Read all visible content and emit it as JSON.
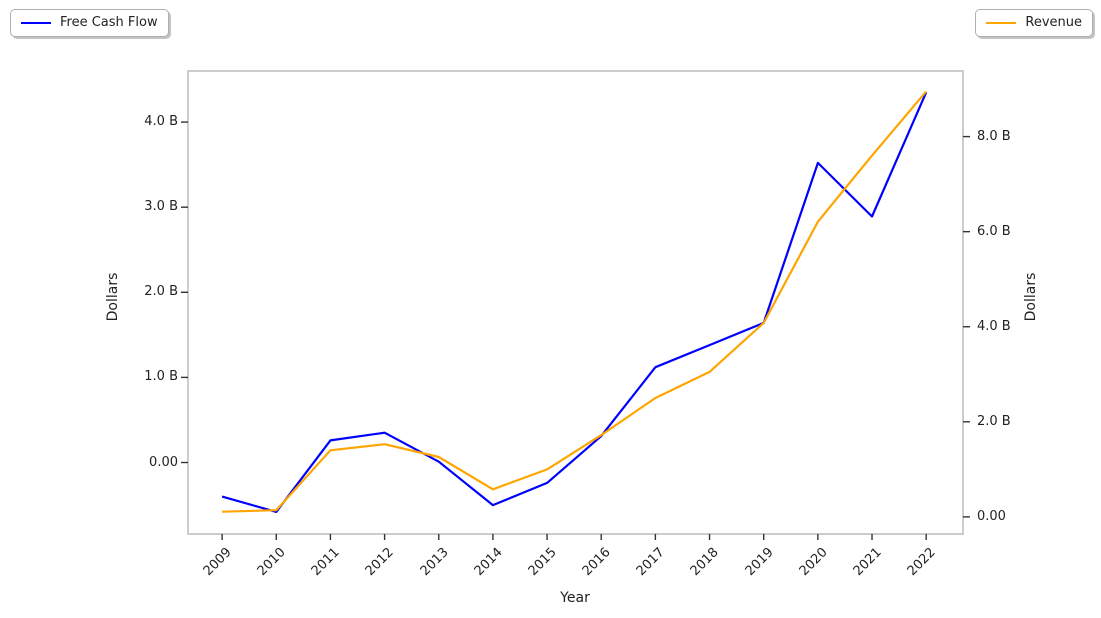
{
  "chart_data": {
    "type": "line",
    "xlabel": "Year",
    "ylabel_left": "Dollars",
    "ylabel_right": "Dollars",
    "x": [
      2009,
      2010,
      2011,
      2012,
      2013,
      2014,
      2015,
      2016,
      2017,
      2018,
      2019,
      2020,
      2021,
      2022
    ],
    "x_range": [
      2008.37,
      2022.68
    ],
    "series": [
      {
        "name": "Free Cash Flow",
        "axis": "left",
        "color": "#0000ff",
        "values": [
          -0.4,
          -0.58,
          0.26,
          0.35,
          0.01,
          -0.5,
          -0.24,
          0.31,
          1.12,
          1.38,
          1.64,
          3.52,
          2.89,
          4.35
        ]
      },
      {
        "name": "Revenue",
        "axis": "right",
        "color": "#ffa500",
        "values": [
          0.11,
          0.14,
          1.4,
          1.53,
          1.26,
          0.58,
          1.0,
          1.72,
          2.5,
          3.05,
          4.08,
          6.21,
          7.6,
          8.95
        ]
      }
    ],
    "left_axis": {
      "tick_values": [
        0,
        1,
        2,
        3,
        4
      ],
      "tick_labels": [
        "0.00",
        "1.0 B",
        "2.0 B",
        "3.0 B",
        "4.0 B"
      ],
      "range": [
        -0.84,
        4.6
      ],
      "unit": "B"
    },
    "right_axis": {
      "tick_values": [
        0,
        2,
        4,
        6,
        8
      ],
      "tick_labels": [
        "0.00",
        "2.0 B",
        "4.0 B",
        "6.0 B",
        "8.0 B"
      ],
      "range": [
        -0.36,
        9.38
      ],
      "unit": "B"
    },
    "grid": false,
    "legend_positions": [
      "top-left-outside",
      "top-right-outside"
    ]
  },
  "colors": {
    "frame": "#cccccc",
    "tick": "#333333",
    "text": "#222222",
    "background": "#ffffff",
    "free_cash_flow": "#0000ff",
    "revenue": "#ffa500"
  }
}
